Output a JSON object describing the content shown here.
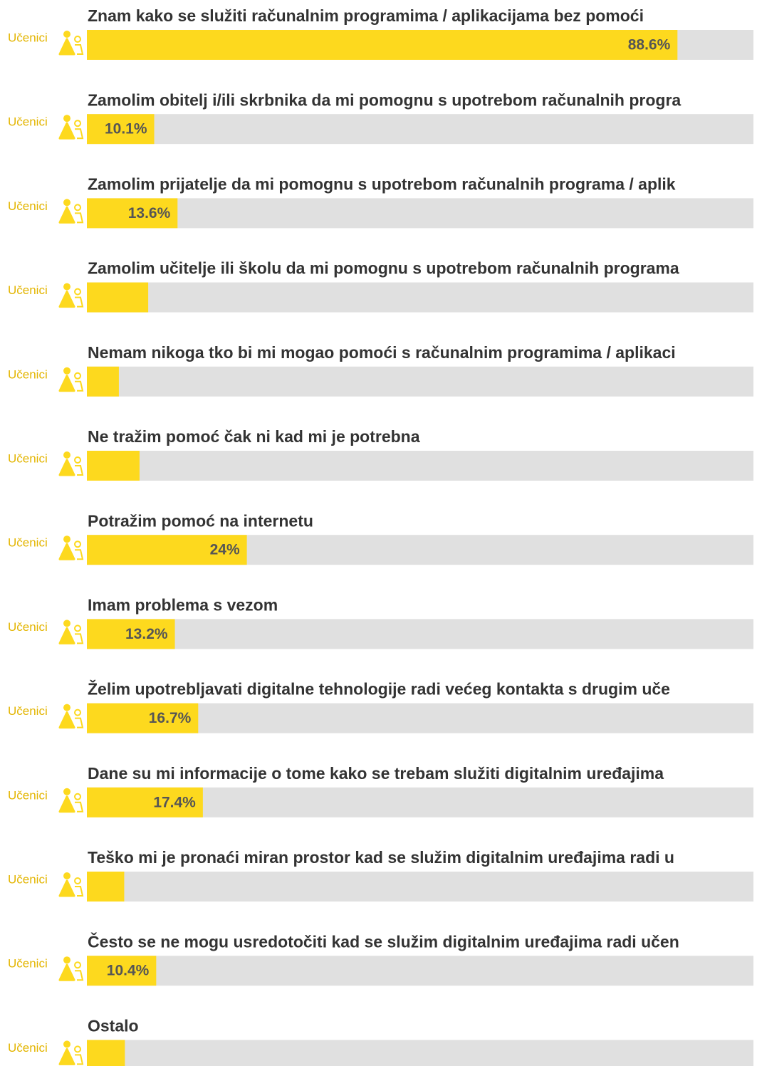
{
  "chart_data": {
    "type": "bar",
    "categories": [
      "Znam kako se služiti računalnim programima / aplikacijama bez pomoći",
      "Zamolim obitelj i/ili skrbnika da mi pomognu s upotrebom računalnih progra",
      "Zamolim prijatelje da mi pomognu s upotrebom računalnih programa / aplik",
      "Zamolim učitelje ili školu da mi pomognu s upotrebom računalnih programa",
      "Nemam nikoga tko bi mi mogao pomoći s računalnim programima / aplikaci",
      "Ne tražim pomoć čak ni kad mi je potrebna",
      "Potražim pomoć na internetu",
      "Imam problema s vezom",
      "Želim upotrebljavati digitalne tehnologije radi većeg kontakta s drugim uče",
      "Dane su mi informacije o tome kako se trebam služiti digitalnim uređajima",
      "Teško mi je pronaći miran prostor kad se služim digitalnim uređajima radi u",
      "Često se ne mogu usredotočiti kad se služim digitalnim uređajima radi učen",
      "Ostalo"
    ],
    "series": [
      {
        "name": "Učenici",
        "color": "#fdd91e",
        "values": [
          88.6,
          10.1,
          13.6,
          9.2,
          4.8,
          7.9,
          24,
          13.2,
          16.7,
          17.4,
          5.6,
          10.4,
          5.7
        ],
        "value_labels": [
          "88.6%",
          "10.1%",
          "13.6%",
          null,
          null,
          null,
          "24%",
          "13.2%",
          "16.7%",
          "17.4%",
          null,
          "10.4%",
          null
        ]
      }
    ],
    "xlim": [
      0,
      100
    ],
    "track_color": "#e0e0e0"
  }
}
